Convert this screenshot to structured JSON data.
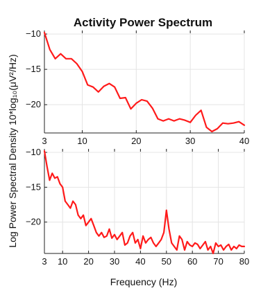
{
  "title": "Activity Power Spectrum",
  "ylabel": "Log Power Spectral Density 10*log₁₀(μV²/Hz)",
  "xlabel": "Frequency (Hz)",
  "colors": {
    "series": "#ff1a1a",
    "grid": "#e4e4e4",
    "axis": "#222222"
  },
  "chart_data": [
    {
      "type": "line",
      "title": "Activity Power Spectrum",
      "xlim": [
        3,
        40
      ],
      "ylim": [
        -24,
        -9.5
      ],
      "xticks": [
        3,
        10,
        20,
        30,
        40
      ],
      "yticks": [
        -10,
        -15,
        -20
      ],
      "grid": true,
      "series": [
        {
          "x": [
            3,
            4,
            5,
            6,
            7,
            8,
            9,
            10,
            11,
            12,
            13,
            14,
            15,
            16,
            17,
            18,
            19,
            20,
            21,
            22,
            23,
            24,
            25,
            26,
            27,
            28,
            29,
            30,
            31,
            32,
            33,
            34,
            35,
            36,
            37,
            38,
            39,
            40
          ],
          "y": [
            -9.8,
            -12.2,
            -13.5,
            -12.8,
            -13.5,
            -13.5,
            -14.2,
            -15.3,
            -17.2,
            -17.5,
            -18.2,
            -17.4,
            -17.0,
            -17.5,
            -19.1,
            -19.0,
            -20.6,
            -19.8,
            -19.3,
            -19.5,
            -20.5,
            -22.0,
            -22.3,
            -22.0,
            -22.3,
            -22.0,
            -22.2,
            -22.5,
            -21.5,
            -20.8,
            -23.2,
            -23.8,
            -23.4,
            -22.6,
            -22.7,
            -22.6,
            -22.4,
            -22.9
          ]
        }
      ]
    },
    {
      "type": "line",
      "xlim": [
        3,
        80
      ],
      "ylim": [
        -24.5,
        -9.5
      ],
      "xticks": [
        3,
        10,
        20,
        30,
        40,
        50,
        60,
        70,
        80
      ],
      "yticks": [
        -10,
        -15,
        -20
      ],
      "grid": true,
      "series": [
        {
          "x": [
            3,
            4,
            5,
            6,
            7,
            8,
            9,
            10,
            11,
            12,
            13,
            14,
            15,
            16,
            17,
            18,
            19,
            20,
            21,
            22,
            23,
            24,
            25,
            26,
            27,
            28,
            29,
            30,
            31,
            32,
            33,
            34,
            35,
            36,
            37,
            38,
            39,
            40,
            41,
            42,
            43,
            44,
            45,
            46,
            47,
            48,
            49,
            50,
            51,
            52,
            53,
            54,
            55,
            56,
            57,
            58,
            59,
            60,
            61,
            62,
            63,
            64,
            65,
            66,
            67,
            68,
            69,
            70,
            71,
            72,
            73,
            74,
            75,
            76,
            77,
            78,
            79,
            80
          ],
          "y": [
            -9.8,
            -12.0,
            -14.0,
            -13.0,
            -13.7,
            -13.5,
            -14.5,
            -15.0,
            -17.0,
            -17.5,
            -18.0,
            -17.0,
            -17.5,
            -19.0,
            -19.5,
            -19.0,
            -20.5,
            -20.0,
            -19.5,
            -20.5,
            -21.5,
            -22.0,
            -21.5,
            -22.2,
            -22.0,
            -21.0,
            -22.3,
            -21.8,
            -22.5,
            -22.0,
            -21.5,
            -23.3,
            -23.0,
            -22.0,
            -21.5,
            -23.0,
            -22.5,
            -23.8,
            -22.0,
            -23.0,
            -22.5,
            -22.2,
            -23.0,
            -23.5,
            -23.0,
            -22.5,
            -21.5,
            -18.3,
            -21.0,
            -23.0,
            -23.5,
            -24.0,
            -22.0,
            -22.5,
            -24.0,
            -22.8,
            -23.3,
            -23.5,
            -23.0,
            -23.2,
            -23.8,
            -23.3,
            -22.8,
            -24.0,
            -23.5,
            -24.5,
            -23.0,
            -23.5,
            -23.3,
            -24.0,
            -23.5,
            -23.2,
            -24.0,
            -23.5,
            -23.8,
            -23.3,
            -23.5,
            -23.5
          ]
        }
      ]
    }
  ]
}
